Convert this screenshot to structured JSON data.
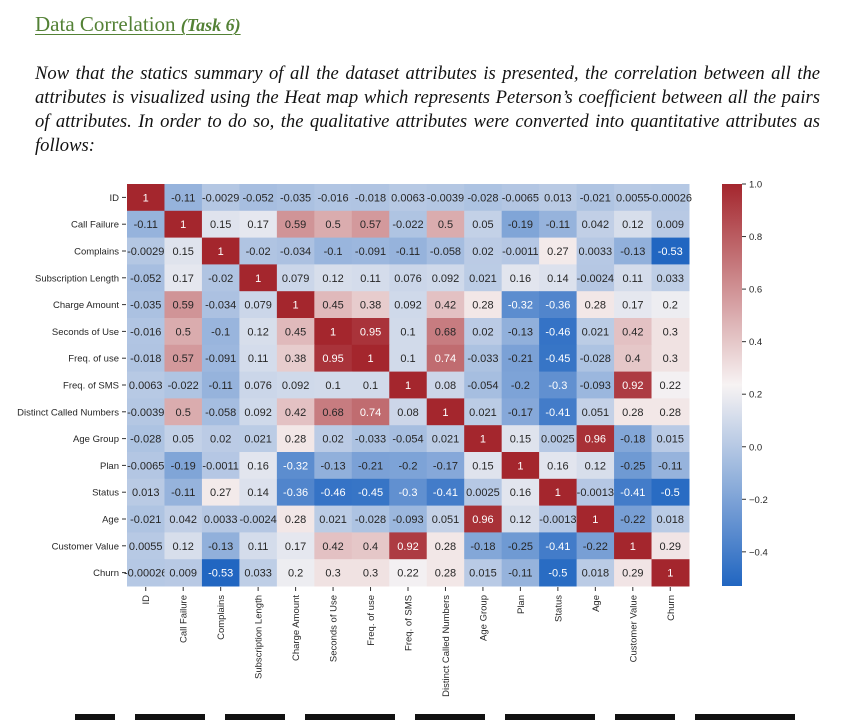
{
  "section": {
    "title": "Data Correlation",
    "task_label": "(Task 6)",
    "title_color": "#538135",
    "paragraph": "Now that the statics summary of all the dataset attributes is presented, the correlation between all the attributes is visualized using the Heat map which represents Peterson’s coefficient between all the pairs of attributes. In order to do so, the qualitative attributes were converted into quantitative attributes as follows:"
  },
  "chart_data": {
    "type": "heatmap",
    "title": "",
    "colormap": "vlag (blue-white-red)",
    "color_low": "#2166c1",
    "color_mid": "#f7f3f3",
    "color_high": "#a4262d",
    "vmin": -0.53,
    "vmax": 1.0,
    "labels": [
      "ID",
      "Call Failure",
      "Complains",
      "Subscription  Length",
      "Charge Amount",
      "Seconds of Use",
      "Freq. of use",
      "Freq. of SMS",
      "Distinct Called Numbers",
      "Age Group",
      "Plan",
      "Status",
      "Age",
      "Customer Value",
      "Churn"
    ],
    "matrix_text": [
      [
        "1",
        "-0.11",
        "-0.0029",
        "-0.052",
        "-0.035",
        "-0.016",
        "-0.018",
        "0.0063",
        "-0.0039",
        "-0.028",
        "-0.0065",
        "0.013",
        "-0.021",
        "0.0055",
        "-0.00026"
      ],
      [
        "-0.11",
        "1",
        "0.15",
        "0.17",
        "0.59",
        "0.5",
        "0.57",
        "-0.022",
        "0.5",
        "0.05",
        "-0.19",
        "-0.11",
        "0.042",
        "0.12",
        "0.009"
      ],
      [
        "-0.0029",
        "0.15",
        "1",
        "-0.02",
        "-0.034",
        "-0.1",
        "-0.091",
        "-0.11",
        "-0.058",
        "0.02",
        "-0.0011",
        "0.27",
        "0.0033",
        "-0.13",
        "-0.53"
      ],
      [
        "-0.052",
        "0.17",
        "-0.02",
        "1",
        "0.079",
        "0.12",
        "0.11",
        "0.076",
        "0.092",
        "0.021",
        "0.16",
        "0.14",
        "-0.0024",
        "0.11",
        "0.033"
      ],
      [
        "-0.035",
        "0.59",
        "-0.034",
        "0.079",
        "1",
        "0.45",
        "0.38",
        "0.092",
        "0.42",
        "0.28",
        "-0.32",
        "-0.36",
        "0.28",
        "0.17",
        "0.2"
      ],
      [
        "-0.016",
        "0.5",
        "-0.1",
        "0.12",
        "0.45",
        "1",
        "0.95",
        "0.1",
        "0.68",
        "0.02",
        "-0.13",
        "-0.46",
        "0.021",
        "0.42",
        "0.3"
      ],
      [
        "-0.018",
        "0.57",
        "-0.091",
        "0.11",
        "0.38",
        "0.95",
        "1",
        "0.1",
        "0.74",
        "-0.033",
        "-0.21",
        "-0.45",
        "-0.028",
        "0.4",
        "0.3"
      ],
      [
        "0.0063",
        "-0.022",
        "-0.11",
        "0.076",
        "0.092",
        "0.1",
        "0.1",
        "1",
        "0.08",
        "-0.054",
        "-0.2",
        "-0.3",
        "-0.093",
        "0.92",
        "0.22"
      ],
      [
        "-0.0039",
        "0.5",
        "-0.058",
        "0.092",
        "0.42",
        "0.68",
        "0.74",
        "0.08",
        "1",
        "0.021",
        "-0.17",
        "-0.41",
        "0.051",
        "0.28",
        "0.28"
      ],
      [
        "-0.028",
        "0.05",
        "0.02",
        "0.021",
        "0.28",
        "0.02",
        "-0.033",
        "-0.054",
        "0.021",
        "1",
        "0.15",
        "0.0025",
        "0.96",
        "-0.18",
        "0.015"
      ],
      [
        "-0.0065",
        "-0.19",
        "-0.0011",
        "0.16",
        "-0.32",
        "-0.13",
        "-0.21",
        "-0.2",
        "-0.17",
        "0.15",
        "1",
        "0.16",
        "0.12",
        "-0.25",
        "-0.11"
      ],
      [
        "0.013",
        "-0.11",
        "0.27",
        "0.14",
        "-0.36",
        "-0.46",
        "-0.45",
        "-0.3",
        "-0.41",
        "0.0025",
        "0.16",
        "1",
        "-0.0013",
        "-0.41",
        "-0.5"
      ],
      [
        "-0.021",
        "0.042",
        "0.0033",
        "-0.0024",
        "0.28",
        "0.021",
        "-0.028",
        "-0.093",
        "0.051",
        "0.96",
        "0.12",
        "-0.0013",
        "1",
        "-0.22",
        "0.018"
      ],
      [
        "0.0055",
        "0.12",
        "-0.13",
        "0.11",
        "0.17",
        "0.42",
        "0.4",
        "0.92",
        "0.28",
        "-0.18",
        "-0.25",
        "-0.41",
        "-0.22",
        "1",
        "0.29"
      ],
      [
        "-0.00026",
        "0.009",
        "-0.53",
        "0.033",
        "0.2",
        "0.3",
        "0.3",
        "0.22",
        "0.28",
        "0.015",
        "-0.11",
        "-0.5",
        "0.018",
        "0.29",
        "1"
      ]
    ],
    "colorbar": {
      "ticks": [
        1.0,
        0.8,
        0.6,
        0.4,
        0.2,
        0.0,
        -0.2,
        -0.4
      ],
      "tick_labels": [
        "1.0",
        "0.8",
        "0.6",
        "0.4",
        "0.2",
        "0.0",
        "−0.2",
        "−0.4"
      ]
    },
    "legend_placement": "right",
    "grid": false
  }
}
